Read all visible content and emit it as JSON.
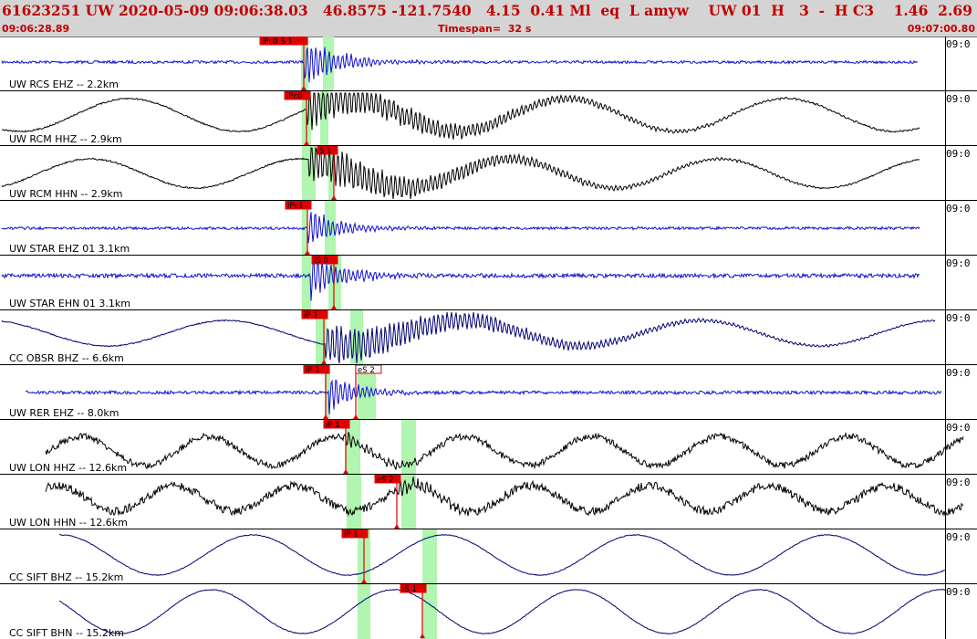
{
  "header": {
    "summary": "61623251 UW 2020-05-09 09:06:38.03   46.8575 -121.7540   4.15  0.41 Ml  eq  L amyw    UW 01  H   3  -  H C3    1.46  2.69",
    "start_time": "09:06:28.89",
    "timespan": "Timespan=  32 s",
    "end_time": "09:07:00.80"
  },
  "colors": {
    "header_text": "#c00000",
    "header_bg": "#d4d4d4",
    "trace_blue": "#1010d0",
    "trace_black": "#000000",
    "pick_red": "#e00000",
    "window_green": "#b0f5b0"
  },
  "panels": [
    {
      "label": "UW RCS EHZ -- 2.2km",
      "time_tag": "09:0",
      "color": "blue",
      "picks": [
        "iPc0 S 1"
      ]
    },
    {
      "label": "UW RCM HHZ -- 2.9km",
      "time_tag": "09:0",
      "color": "black",
      "picks": [
        "iPc0"
      ]
    },
    {
      "label": "UW RCM HHN -- 2.9km",
      "time_tag": "09:0",
      "color": "black",
      "picks": [
        "S 1"
      ]
    },
    {
      "label": "UW STAR EHZ 01 3.1km",
      "time_tag": "09:0",
      "color": "blue",
      "picks": [
        "iPc1"
      ]
    },
    {
      "label": "UW STAR EHN 01 3.1km",
      "time_tag": "09:0",
      "color": "blue",
      "picks": [
        "iS 0"
      ]
    },
    {
      "label": "CC OBSR BHZ -- 6.6km",
      "time_tag": "09:0",
      "color": "navy",
      "picks": [
        "iP 1"
      ]
    },
    {
      "label": "UW RER EHZ -- 8.0km",
      "time_tag": "09:0",
      "color": "blue",
      "picks": [
        "iP 1",
        "eS 2"
      ]
    },
    {
      "label": "UW LON HHZ -- 12.6km",
      "time_tag": "09:0",
      "color": "black",
      "picks": [
        "iP 1"
      ]
    },
    {
      "label": "UW LON HHN -- 12.6km",
      "time_tag": "09:0",
      "color": "black",
      "picks": [
        "eS 2"
      ]
    },
    {
      "label": "CC SIFT BHZ -- 15.2km",
      "time_tag": "09:0",
      "color": "navy",
      "picks": [
        "iP 1"
      ]
    },
    {
      "label": "CC SIFT BHN -- 15.2km",
      "time_tag": "09:0",
      "color": "navy",
      "picks": [
        "iS 1"
      ]
    }
  ]
}
